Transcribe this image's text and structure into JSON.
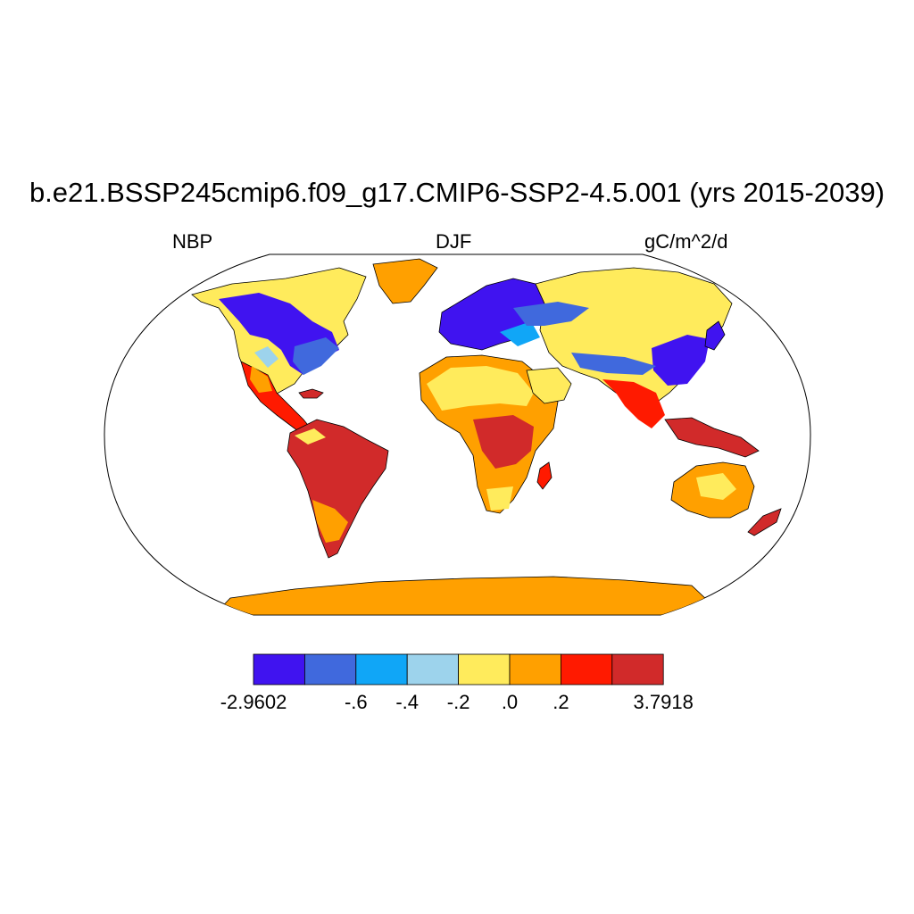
{
  "title": "b.e21.BSSP245cmip6.f09_g17.CMIP6-SSP2-4.5.001 (yrs 2015-2039)",
  "left_label": "NBP",
  "center_label": "DJF",
  "right_label": "gC/m^2/d",
  "map": {
    "projection": "robinson",
    "variable": "NBP",
    "season": "DJF",
    "units": "gC/m^2/d",
    "ocean_color": "#ffffff",
    "coastline_color": "#000000"
  },
  "colorbar": {
    "colors": [
      "#4013f0",
      "#4069dd",
      "#10a6f7",
      "#9dd3ec",
      "#ffeb5c",
      "#ffa000",
      "#ff1a00",
      "#d12a2a"
    ],
    "labels": [
      "-2.9602",
      "-.6",
      "-.4",
      "-.2",
      ".0",
      ".2",
      "3.7918"
    ],
    "label_boundary_index": [
      0,
      2,
      3,
      4,
      5,
      6,
      8
    ],
    "min": -2.9602,
    "max": 3.7918
  }
}
